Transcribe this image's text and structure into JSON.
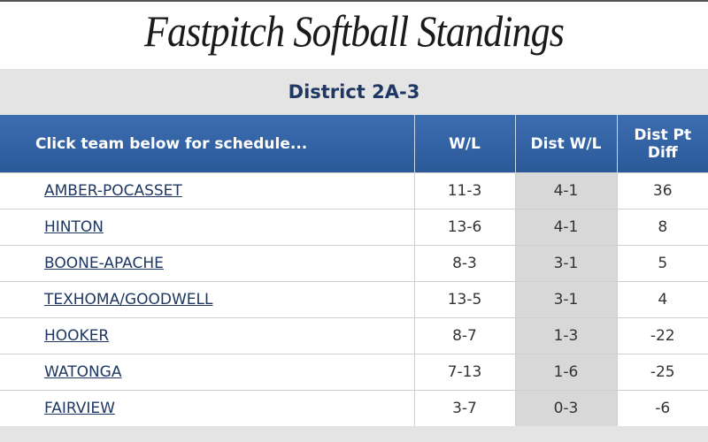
{
  "header": {
    "title": "Fastpitch Softball Standings"
  },
  "table": {
    "title": "District 2A-3",
    "columns": [
      "Click team below for schedule...",
      "W/L",
      "Dist W/L",
      "Dist Pt Diff"
    ],
    "rows": [
      [
        "AMBER-POCASSET",
        "11-3",
        "4-1",
        36
      ],
      [
        "HINTON",
        "13-6",
        "4-1",
        8
      ],
      [
        "BOONE-APACHE",
        "8-3",
        "3-1",
        5
      ],
      [
        "TEXHOMA/GOODWELL",
        "13-5",
        "3-1",
        4
      ],
      [
        "HOOKER",
        "8-7",
        "1-3",
        -22
      ],
      [
        "WATONGA",
        "7-13",
        "1-6",
        -25
      ],
      [
        "FAIRVIEW",
        "3-7",
        "0-3",
        -6
      ]
    ]
  }
}
